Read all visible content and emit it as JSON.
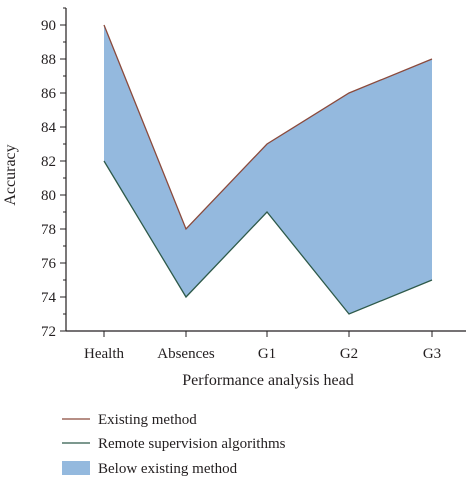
{
  "chart_data": {
    "type": "area",
    "categories": [
      "Health",
      "Absences",
      "G1",
      "G2",
      "G3"
    ],
    "series": [
      {
        "name": "Existing method",
        "values": [
          90,
          78,
          83,
          86,
          88
        ],
        "color": "#8b4a3c"
      },
      {
        "name": "Remote supervision algorithms",
        "values": [
          82,
          74,
          79,
          73,
          75
        ],
        "color": "#2e5a4a"
      }
    ],
    "band": {
      "name": "Below existing method",
      "color": "#94b9de"
    },
    "xlabel": "Performance analysis head",
    "ylabel": "Accuracy",
    "ylim": [
      72,
      91
    ],
    "yticks": [
      "72",
      "74",
      "76",
      "78",
      "80",
      "82",
      "84",
      "86",
      "88",
      "90"
    ],
    "legend_position": "bottom-left",
    "grid": false
  }
}
